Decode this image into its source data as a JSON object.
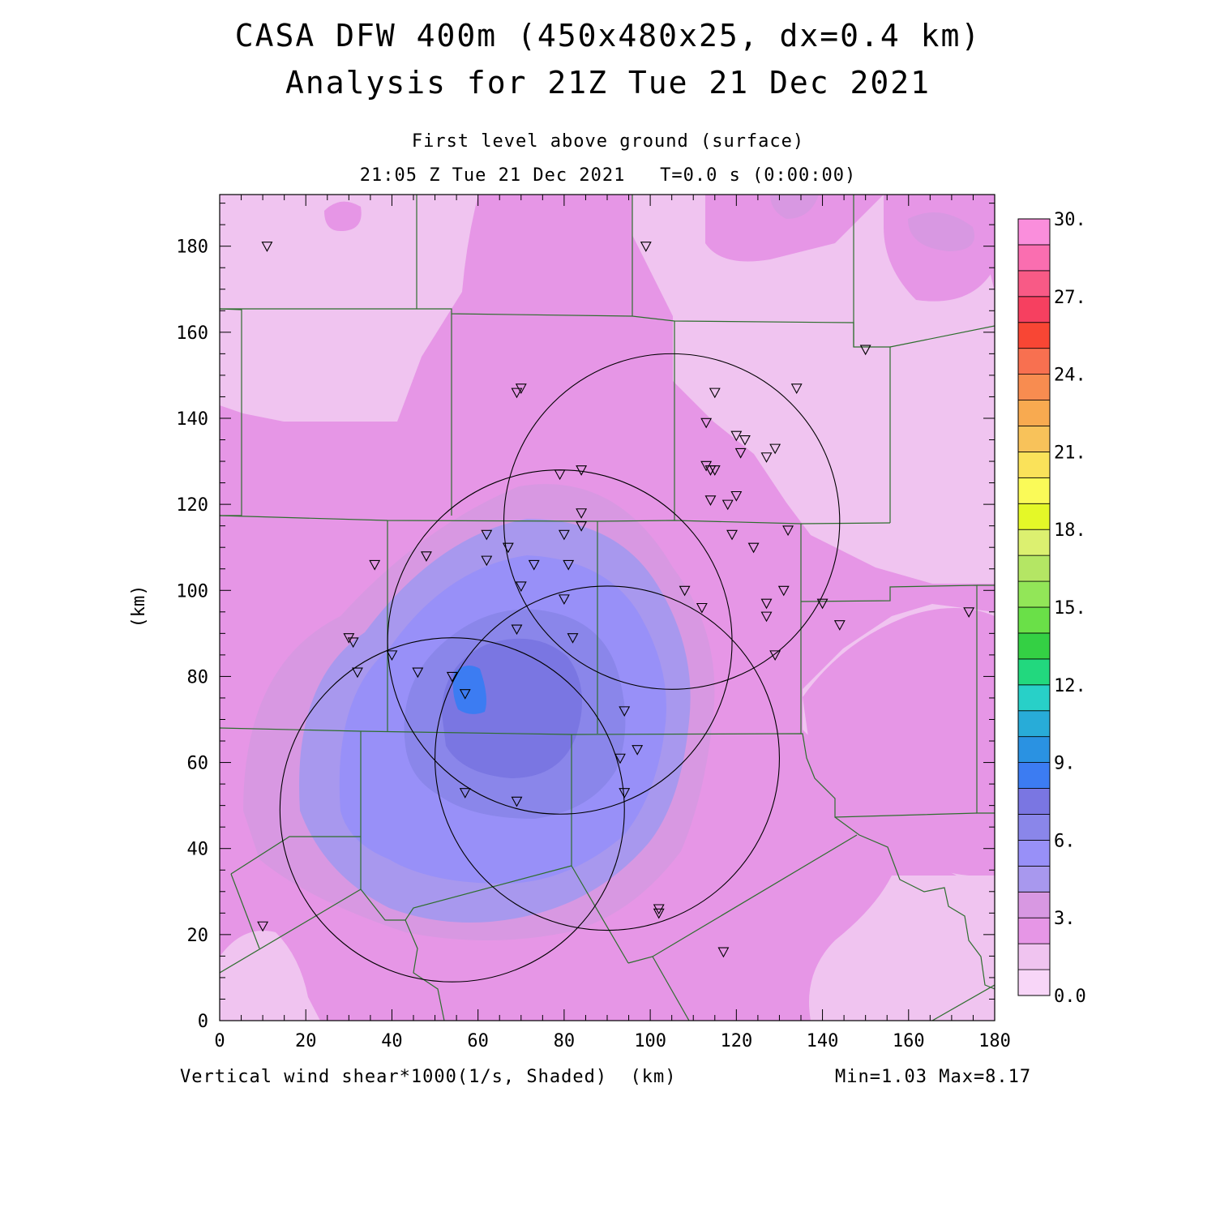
{
  "title_line1": "CASA DFW 400m (450x480x25, dx=0.4 km)",
  "title_line2": "Analysis for 21Z Tue 21 Dec 2021",
  "subtitle_line1": "First level above ground (surface)",
  "subtitle_line2": "21:05 Z Tue 21 Dec 2021   T=0.0 s (0:00:00)",
  "field_label": "Vertical wind shear*1000(1/s, Shaded)  (km)",
  "min_max_label": "Min=1.03 Max=8.17",
  "chart_data": {
    "type": "heatmap",
    "title": "CASA DFW 400m (450x480x25, dx=0.4 km)",
    "xlabel": "(km)",
    "ylabel": "(km)",
    "xlim": [
      0,
      180
    ],
    "ylim": [
      0,
      192
    ],
    "x_ticks": [
      0,
      20,
      40,
      60,
      80,
      100,
      120,
      140,
      160,
      180
    ],
    "y_ticks": [
      0,
      20,
      40,
      60,
      80,
      100,
      120,
      140,
      160,
      180
    ],
    "colorbar": {
      "min": 0,
      "max": 30,
      "step": 1.5,
      "tick_labels": [
        "0.0",
        "3.",
        "6.",
        "9.",
        "12.",
        "15.",
        "18.",
        "21.",
        "24.",
        "27.",
        "30."
      ],
      "tick_values": [
        0,
        3,
        6,
        9,
        12,
        15,
        18,
        21,
        24,
        27,
        30
      ],
      "colors": [
        "#f8d6f8",
        "#f0c4f0",
        "#e696e6",
        "#d898e2",
        "#a898ee",
        "#9890f8",
        "#8a86ea",
        "#7a76e2",
        "#3c7cf2",
        "#2a92e2",
        "#28acd8",
        "#28d0c8",
        "#22d87e",
        "#34d044",
        "#6ae048",
        "#92e658",
        "#b4e664",
        "#dcf070",
        "#e4f828",
        "#fafa58",
        "#fae25a",
        "#f8c25a",
        "#f8aa50",
        "#f88c50",
        "#f87050",
        "#f84634",
        "#f64060",
        "#f85a86",
        "#fa6eb0",
        "#fa8edc"
      ]
    },
    "field_min": 1.03,
    "field_max": 8.17,
    "radar_rings": [
      {
        "center": [
          105,
          116
        ],
        "radius": 39
      },
      {
        "center": [
          79,
          88
        ],
        "radius": 40
      },
      {
        "center": [
          90,
          61
        ],
        "radius": 40
      },
      {
        "center": [
          54,
          49
        ],
        "radius": 40
      }
    ],
    "stations": [
      [
        11,
        180
      ],
      [
        99,
        180
      ],
      [
        150,
        156
      ],
      [
        69,
        146
      ],
      [
        70,
        147
      ],
      [
        115,
        146
      ],
      [
        134,
        147
      ],
      [
        113,
        139
      ],
      [
        120,
        136
      ],
      [
        122,
        135
      ],
      [
        121,
        132
      ],
      [
        127,
        131
      ],
      [
        129,
        133
      ],
      [
        113,
        129
      ],
      [
        114,
        128
      ],
      [
        115,
        128
      ],
      [
        79,
        127
      ],
      [
        84,
        128
      ],
      [
        114,
        121
      ],
      [
        120,
        122
      ],
      [
        118,
        120
      ],
      [
        84,
        118
      ],
      [
        84,
        115
      ],
      [
        62,
        113
      ],
      [
        80,
        113
      ],
      [
        119,
        113
      ],
      [
        132,
        114
      ],
      [
        67,
        110
      ],
      [
        124,
        110
      ],
      [
        36,
        106
      ],
      [
        48,
        108
      ],
      [
        62,
        107
      ],
      [
        73,
        106
      ],
      [
        81,
        106
      ],
      [
        70,
        101
      ],
      [
        108,
        100
      ],
      [
        127,
        97
      ],
      [
        131,
        100
      ],
      [
        140,
        97
      ],
      [
        112,
        96
      ],
      [
        127,
        94
      ],
      [
        80,
        98
      ],
      [
        144,
        92
      ],
      [
        174,
        95
      ],
      [
        30,
        89
      ],
      [
        31,
        88
      ],
      [
        69,
        91
      ],
      [
        82,
        89
      ],
      [
        40,
        85
      ],
      [
        129,
        85
      ],
      [
        32,
        81
      ],
      [
        46,
        81
      ],
      [
        54,
        80
      ],
      [
        57,
        76
      ],
      [
        94,
        72
      ],
      [
        97,
        63
      ],
      [
        93,
        61
      ],
      [
        57,
        53
      ],
      [
        69,
        51
      ],
      [
        94,
        53
      ],
      [
        10,
        22
      ],
      [
        102,
        26
      ],
      [
        102,
        25
      ],
      [
        117,
        16
      ]
    ]
  }
}
